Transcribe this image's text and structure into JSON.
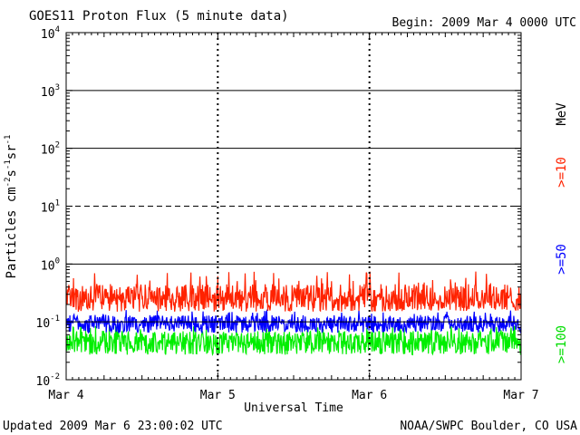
{
  "chart_data": {
    "type": "line",
    "title": "GOES11 Proton Flux (5 minute data)",
    "begin_label": "Begin: 2009 Mar 4 0000 UTC",
    "ylabel": "Particles cm-2s-1sr-1",
    "xlabel": "Universal Time",
    "yscale": "log",
    "ylim": [
      0.01,
      10000
    ],
    "y_tick_labels": [
      "10^4",
      "10^3",
      "10^2",
      "10^1",
      "10^0",
      "10^-1",
      "10^-2"
    ],
    "x_tick_labels": [
      "Mar 4",
      "Mar 5",
      "Mar 6",
      "Mar 7"
    ],
    "xlim_days": [
      4,
      7
    ],
    "reference_lines": [
      {
        "y": 1000,
        "style": "solid"
      },
      {
        "y": 100,
        "style": "solid"
      },
      {
        "y": 10,
        "style": "dashed"
      },
      {
        "y": 1,
        "style": "solid"
      },
      {
        "y": 0.1,
        "style": "solid"
      }
    ],
    "series": [
      {
        "name": ">=10 MeV",
        "color": "#ff2200",
        "baseline": 0.25,
        "low": 0.15,
        "high": 0.45,
        "spike_max": 0.75
      },
      {
        "name": ">=50",
        "color": "#0000ff",
        "baseline": 0.09,
        "low": 0.065,
        "high": 0.13,
        "spike_max": 0.16
      },
      {
        "name": ">=100",
        "color": "#00ee00",
        "baseline": 0.045,
        "low": 0.027,
        "high": 0.07,
        "spike_max": 0.09
      }
    ],
    "legend": {
      "unit": "MeV",
      "ge10": ">=10",
      "ge50": ">=50",
      "ge100": ">=100"
    }
  },
  "footer": {
    "updated": "Updated 2009 Mar  6 23:00:02 UTC",
    "source": "NOAA/SWPC Boulder, CO USA"
  }
}
